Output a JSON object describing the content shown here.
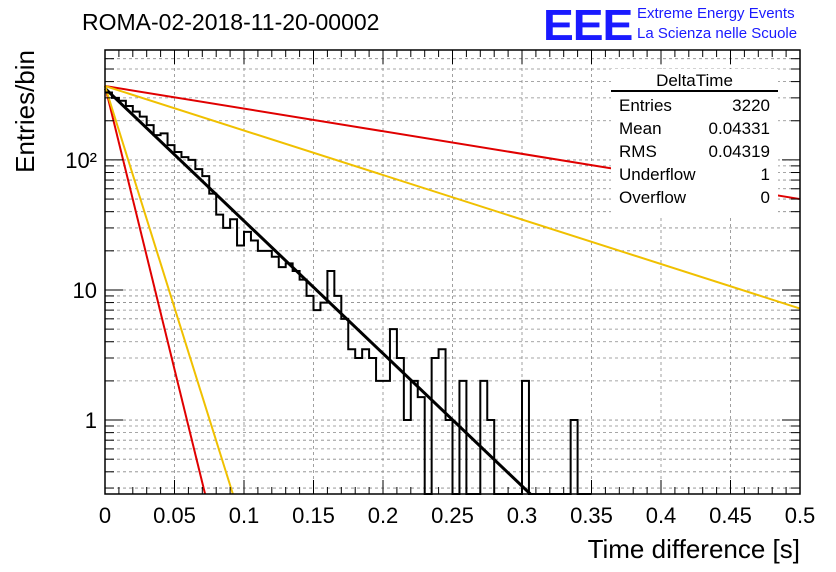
{
  "header": {
    "title": "ROMA-02-2018-11-20-00002",
    "logo_text": "EEE",
    "logo_line1": "Extreme Energy Events",
    "logo_line2": "La Scienza nelle Scuole"
  },
  "stats_box": {
    "title": "DeltaTime",
    "rows": [
      {
        "label": "Entries",
        "value": "3220"
      },
      {
        "label": "Mean",
        "value": "0.04331"
      },
      {
        "label": "RMS",
        "value": "0.04319"
      },
      {
        "label": "Underflow",
        "value": "1"
      },
      {
        "label": "Overflow",
        "value": "0"
      }
    ]
  },
  "chart_data": {
    "type": "histogram",
    "xlabel": "Time difference [s]",
    "ylabel": "Entries/bin",
    "xlim": [
      0,
      0.5
    ],
    "ylim": [
      0.27,
      700
    ],
    "log_y": true,
    "grid": true,
    "x_ticks": [
      "0",
      "0.05",
      "0.1",
      "0.15",
      "0.2",
      "0.25",
      "0.3",
      "0.35",
      "0.4",
      "0.45",
      "0.5"
    ],
    "y_ticks": [
      {
        "value": 1,
        "label": "1"
      },
      {
        "value": 10,
        "label": "10"
      },
      {
        "value": 100,
        "label": "10²"
      }
    ],
    "bin_width": 0.005,
    "counts": [
      330,
      300,
      285,
      260,
      235,
      215,
      185,
      155,
      160,
      130,
      115,
      105,
      100,
      85,
      75,
      55,
      38,
      30,
      35,
      22,
      28,
      24,
      20,
      20,
      18,
      15,
      16,
      14,
      12,
      9,
      7,
      8,
      14,
      9,
      6,
      3.5,
      3,
      3.5,
      3,
      2,
      2,
      5,
      3,
      1,
      2,
      1.5,
      0,
      3,
      3.5,
      1,
      0,
      2,
      0,
      0,
      2,
      1,
      0,
      0,
      0,
      0,
      2,
      0,
      0,
      0,
      0,
      0,
      0,
      1,
      0,
      0
    ],
    "fits": [
      {
        "color": "#000000",
        "y0": 355,
        "y_end": 0.27,
        "x_end": 0.306
      },
      {
        "color": "#e00000",
        "y0": 370,
        "y_end": 50,
        "x_end": 0.5
      },
      {
        "color": "#f0c000",
        "y0": 370,
        "y_end": 7.2,
        "x_end": 0.5
      },
      {
        "color": "#e00000",
        "y0": 370,
        "y_end": 0.27,
        "x_end": 0.072
      },
      {
        "color": "#f0c000",
        "y0": 370,
        "y_end": 0.27,
        "x_end": 0.092
      }
    ]
  }
}
